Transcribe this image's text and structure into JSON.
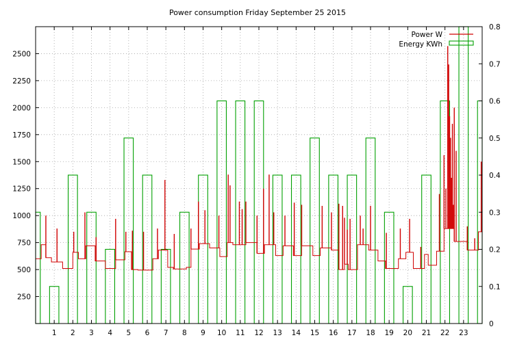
{
  "chart_data": {
    "type": "bar",
    "title": "Power consumption Friday September 25 2015",
    "x": {
      "range": [
        0,
        24
      ],
      "ticks": [
        1,
        2,
        3,
        4,
        5,
        6,
        7,
        8,
        9,
        10,
        11,
        12,
        13,
        14,
        15,
        16,
        17,
        18,
        19,
        20,
        21,
        22,
        23
      ],
      "tick_labels": [
        "1",
        "2",
        "3",
        "4",
        "5",
        "6",
        "7",
        "8",
        "9",
        "10",
        "11",
        "12",
        "13",
        "14",
        "15",
        "16",
        "17",
        "18",
        "19",
        "20",
        "21",
        "22",
        "23"
      ]
    },
    "y_left": {
      "range": [
        0,
        2750
      ],
      "ticks": [
        250,
        500,
        750,
        1000,
        1250,
        1500,
        1750,
        2000,
        2250,
        2500
      ],
      "tick_labels": [
        "250",
        "500",
        "750",
        "1000",
        "1250",
        "1500",
        "1750",
        "2000",
        "2250",
        "2500"
      ]
    },
    "y_right": {
      "range": [
        0,
        0.8
      ],
      "ticks": [
        0,
        0.1,
        0.2,
        0.3,
        0.4,
        0.5,
        0.6,
        0.7,
        0.8
      ],
      "tick_labels": [
        "0",
        "0.1",
        "0.2",
        "0.3",
        "0.4",
        "0.5",
        "0.6",
        "0.7",
        "0.8"
      ]
    },
    "grid": true,
    "legend_position": "top-right",
    "series": [
      {
        "name": "Power W",
        "axis": "left",
        "type": "step-line",
        "color": "#d00000",
        "points": [
          [
            0.0,
            600
          ],
          [
            0.3,
            730
          ],
          [
            0.55,
            610
          ],
          [
            0.85,
            570
          ],
          [
            1.45,
            510
          ],
          [
            2.0,
            660
          ],
          [
            2.3,
            600
          ],
          [
            2.7,
            720
          ],
          [
            3.2,
            580
          ],
          [
            3.75,
            510
          ],
          [
            4.3,
            590
          ],
          [
            4.8,
            665
          ],
          [
            5.15,
            500
          ],
          [
            5.5,
            495
          ],
          [
            6.3,
            600
          ],
          [
            6.6,
            680
          ],
          [
            7.1,
            520
          ],
          [
            7.4,
            505
          ],
          [
            8.1,
            520
          ],
          [
            8.35,
            690
          ],
          [
            8.8,
            740
          ],
          [
            9.35,
            700
          ],
          [
            9.9,
            620
          ],
          [
            10.3,
            750
          ],
          [
            10.6,
            730
          ],
          [
            11.3,
            750
          ],
          [
            11.9,
            650
          ],
          [
            12.3,
            730
          ],
          [
            12.9,
            630
          ],
          [
            13.3,
            720
          ],
          [
            13.85,
            630
          ],
          [
            14.3,
            720
          ],
          [
            14.9,
            630
          ],
          [
            15.3,
            700
          ],
          [
            15.9,
            680
          ],
          [
            16.3,
            500
          ],
          [
            16.6,
            550
          ],
          [
            16.8,
            500
          ],
          [
            17.3,
            730
          ],
          [
            17.9,
            680
          ],
          [
            18.4,
            580
          ],
          [
            18.8,
            510
          ],
          [
            19.5,
            600
          ],
          [
            19.9,
            660
          ],
          [
            20.3,
            510
          ],
          [
            20.9,
            640
          ],
          [
            21.1,
            540
          ],
          [
            21.55,
            670
          ],
          [
            21.95,
            880
          ],
          [
            22.5,
            760
          ],
          [
            23.2,
            680
          ],
          [
            23.8,
            850
          ],
          [
            24.0,
            850
          ]
        ],
        "spikes": [
          [
            0.55,
            1000
          ],
          [
            1.15,
            880
          ],
          [
            2.05,
            850
          ],
          [
            2.65,
            1030
          ],
          [
            3.25,
            800
          ],
          [
            4.3,
            970
          ],
          [
            4.85,
            850
          ],
          [
            5.2,
            860
          ],
          [
            5.8,
            850
          ],
          [
            6.55,
            880
          ],
          [
            6.95,
            1330
          ],
          [
            7.45,
            830
          ],
          [
            8.35,
            880
          ],
          [
            8.75,
            1130
          ],
          [
            9.1,
            1050
          ],
          [
            9.85,
            1000
          ],
          [
            10.35,
            1380
          ],
          [
            10.45,
            1280
          ],
          [
            10.95,
            1130
          ],
          [
            11.1,
            1060
          ],
          [
            11.3,
            1130
          ],
          [
            11.9,
            1000
          ],
          [
            12.25,
            1250
          ],
          [
            12.55,
            1380
          ],
          [
            12.8,
            1030
          ],
          [
            13.4,
            1000
          ],
          [
            13.9,
            1120
          ],
          [
            14.3,
            1100
          ],
          [
            15.4,
            1090
          ],
          [
            15.9,
            1030
          ],
          [
            16.3,
            1110
          ],
          [
            16.5,
            1090
          ],
          [
            16.6,
            980
          ],
          [
            16.75,
            870
          ],
          [
            16.9,
            970
          ],
          [
            17.45,
            1000
          ],
          [
            17.6,
            880
          ],
          [
            18.0,
            1090
          ],
          [
            18.85,
            840
          ],
          [
            19.6,
            880
          ],
          [
            20.1,
            970
          ],
          [
            20.7,
            710
          ],
          [
            21.7,
            1200
          ],
          [
            21.95,
            1560
          ],
          [
            22.05,
            1250
          ],
          [
            22.15,
            2570
          ],
          [
            22.2,
            2400
          ],
          [
            22.25,
            1920
          ],
          [
            22.3,
            1720
          ],
          [
            22.35,
            1350
          ],
          [
            22.4,
            1850
          ],
          [
            22.45,
            1100
          ],
          [
            22.5,
            2000
          ],
          [
            22.6,
            1600
          ],
          [
            23.2,
            900
          ],
          [
            23.6,
            790
          ],
          [
            23.95,
            1500
          ]
        ]
      },
      {
        "name": "Energy KWh",
        "axis": "right",
        "type": "bar",
        "color": "#00a000",
        "bars": [
          [
            0,
            0.3
          ],
          [
            1,
            0.1
          ],
          [
            2,
            0.4
          ],
          [
            3,
            0.3
          ],
          [
            4,
            0.2
          ],
          [
            5,
            0.5
          ],
          [
            6,
            0.4
          ],
          [
            7,
            0.2
          ],
          [
            8,
            0.3
          ],
          [
            9,
            0.4
          ],
          [
            10,
            0.6
          ],
          [
            11,
            0.6
          ],
          [
            12,
            0.6
          ],
          [
            13,
            0.4
          ],
          [
            14,
            0.4
          ],
          [
            15,
            0.5
          ],
          [
            16,
            0.4
          ],
          [
            17,
            0.4
          ],
          [
            18,
            0.5
          ],
          [
            19,
            0.3
          ],
          [
            20,
            0.1
          ],
          [
            21,
            0.4
          ],
          [
            22,
            0.6
          ],
          [
            23,
            0.8
          ],
          [
            24,
            0.6
          ]
        ]
      }
    ]
  }
}
